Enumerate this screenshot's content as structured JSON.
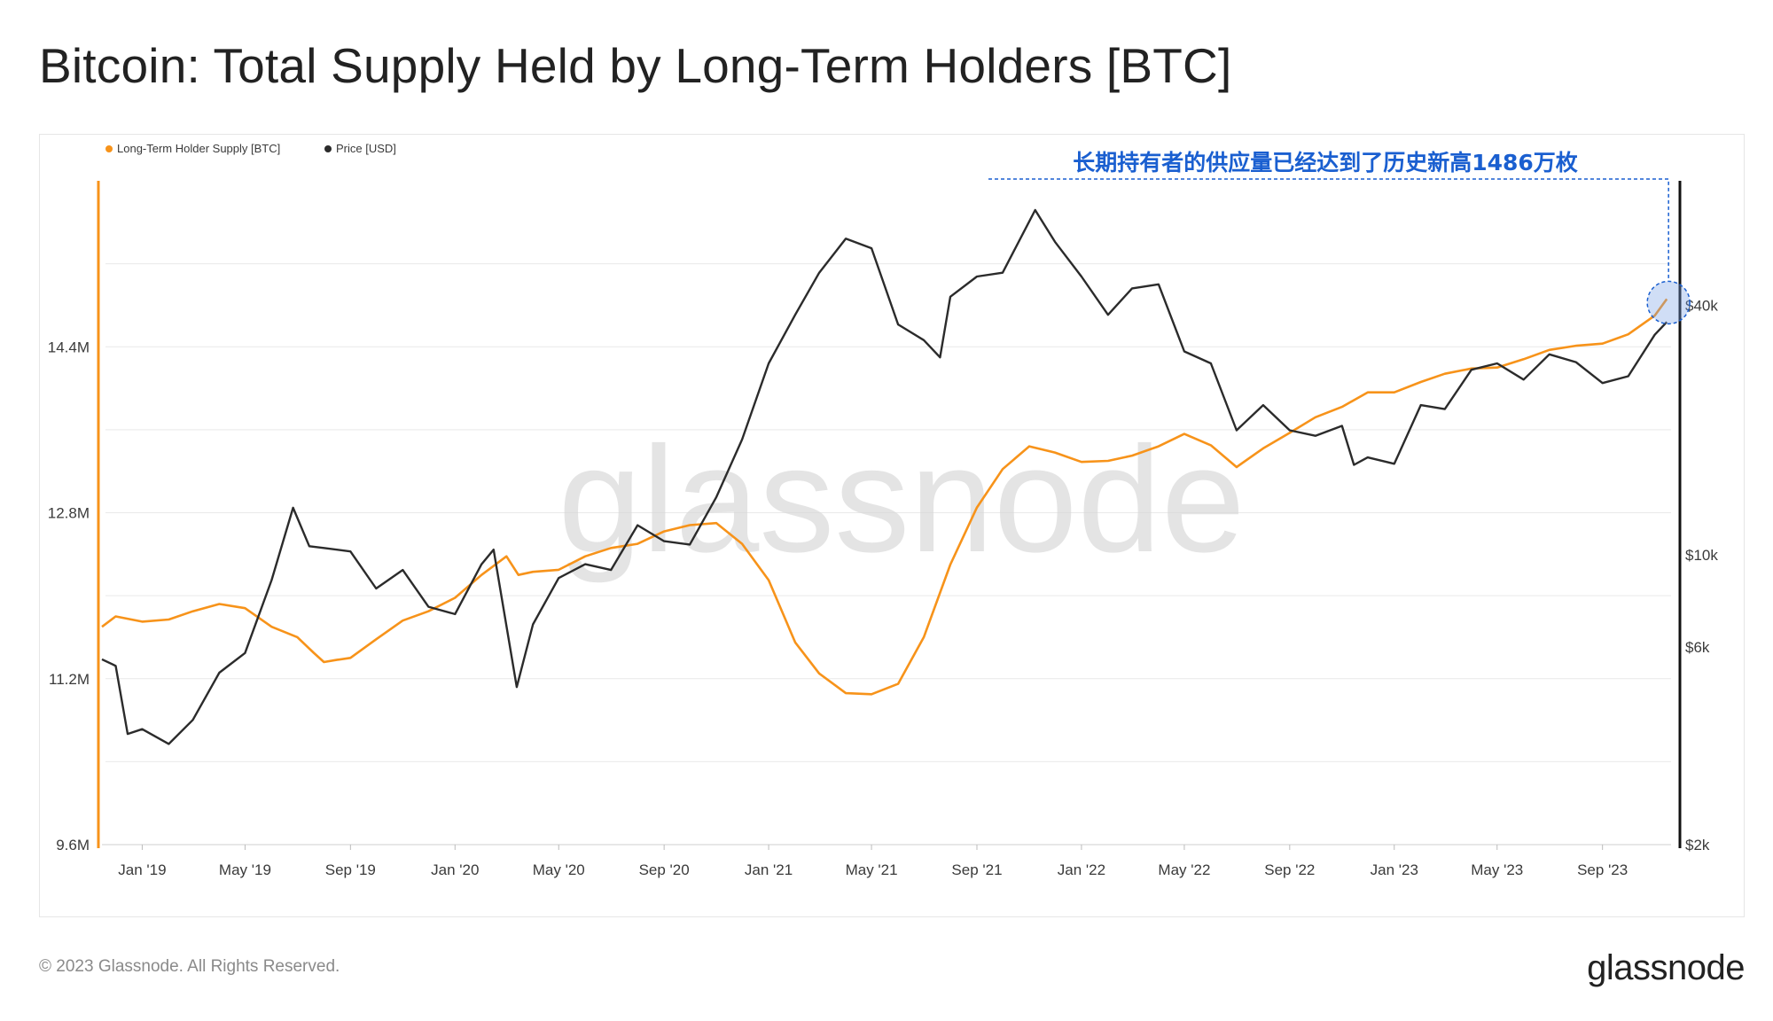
{
  "title": "Bitcoin: Total Supply Held by Long-Term Holders [BTC]",
  "footer": {
    "copyright": "© 2023 Glassnode. All Rights Reserved.",
    "logo": "glassnode"
  },
  "colors": {
    "lth": "#f7931a",
    "price": "#2b2b2b",
    "annotation": "#1a5fd0",
    "grid": "#e9e9e9"
  },
  "chart_data": {
    "type": "line",
    "title": "Bitcoin: Total Supply Held by Long-Term Holders [BTC]",
    "watermark": "glassnode",
    "legend": {
      "placement": "top-left",
      "entries": [
        "Long-Term Holder Supply [BTC]",
        "Price [USD]"
      ]
    },
    "annotation": {
      "text": "长期持有者的供应量已经达到了历史新高1486万枚",
      "date": "2023-11-15",
      "value": 14860000
    },
    "x_axis": {
      "range": [
        "2018-11-15",
        "2023-11-20"
      ],
      "ticks": [
        "Jan '19",
        "May '19",
        "Sep '19",
        "Jan '20",
        "May '20",
        "Sep '20",
        "Jan '21",
        "May '21",
        "Sep '21",
        "Jan '22",
        "May '22",
        "Sep '22",
        "Jan '23",
        "May '23",
        "Sep '23"
      ],
      "tick_dates": [
        "2019-01-01",
        "2019-05-01",
        "2019-09-01",
        "2020-01-01",
        "2020-05-01",
        "2020-09-01",
        "2021-01-01",
        "2021-05-01",
        "2021-09-01",
        "2022-01-01",
        "2022-05-01",
        "2022-09-01",
        "2023-01-01",
        "2023-05-01",
        "2023-09-01"
      ]
    },
    "y_left": {
      "label": "",
      "range": [
        9600000,
        16000000
      ],
      "ticks": [
        "9.6M",
        "11.2M",
        "12.8M",
        "14.4M"
      ],
      "tick_values": [
        9600000,
        11200000,
        12800000,
        14400000
      ]
    },
    "y_right": {
      "label": "",
      "scale": "log",
      "range": [
        2000,
        80000
      ],
      "ticks": [
        "$2k",
        "$6k",
        "$10k",
        "$40k"
      ],
      "tick_values": [
        2000,
        6000,
        10000,
        40000
      ]
    },
    "grid": true,
    "series": [
      {
        "name": "Long-Term Holder Supply [BTC]",
        "axis": "left",
        "color": "#f7931a",
        "x": [
          "2018-11-15",
          "2018-12-01",
          "2019-01-01",
          "2019-02-01",
          "2019-03-01",
          "2019-04-01",
          "2019-05-01",
          "2019-06-01",
          "2019-07-01",
          "2019-07-20",
          "2019-08-01",
          "2019-08-15",
          "2019-09-01",
          "2019-10-01",
          "2019-11-01",
          "2019-12-01",
          "2020-01-01",
          "2020-02-01",
          "2020-03-01",
          "2020-03-15",
          "2020-04-01",
          "2020-05-01",
          "2020-06-01",
          "2020-07-01",
          "2020-08-01",
          "2020-09-01",
          "2020-10-01",
          "2020-11-01",
          "2020-12-01",
          "2021-01-01",
          "2021-02-01",
          "2021-03-01",
          "2021-04-01",
          "2021-05-01",
          "2021-06-01",
          "2021-07-01",
          "2021-08-01",
          "2021-09-01",
          "2021-10-01",
          "2021-11-01",
          "2021-12-01",
          "2022-01-01",
          "2022-02-01",
          "2022-03-01",
          "2022-04-01",
          "2022-05-01",
          "2022-06-01",
          "2022-07-01",
          "2022-08-01",
          "2022-09-01",
          "2022-10-01",
          "2022-11-01",
          "2022-12-01",
          "2023-01-01",
          "2023-02-01",
          "2023-03-01",
          "2023-04-01",
          "2023-05-01",
          "2023-06-01",
          "2023-07-01",
          "2023-08-01",
          "2023-09-01",
          "2023-10-01",
          "2023-11-01",
          "2023-11-15"
        ],
        "values": [
          11700000,
          11800000,
          11750000,
          11770000,
          11850000,
          11920000,
          11880000,
          11700000,
          11600000,
          11450000,
          11360000,
          11380000,
          11400000,
          11580000,
          11760000,
          11850000,
          11980000,
          12200000,
          12380000,
          12200000,
          12230000,
          12250000,
          12380000,
          12460000,
          12500000,
          12620000,
          12680000,
          12700000,
          12500000,
          12150000,
          11550000,
          11250000,
          11060000,
          11050000,
          11150000,
          11600000,
          12300000,
          12850000,
          13220000,
          13440000,
          13380000,
          13290000,
          13300000,
          13350000,
          13440000,
          13560000,
          13450000,
          13240000,
          13420000,
          13570000,
          13720000,
          13820000,
          13960000,
          13960000,
          14060000,
          14140000,
          14190000,
          14200000,
          14280000,
          14370000,
          14410000,
          14430000,
          14520000,
          14700000,
          14860000
        ]
      },
      {
        "name": "Price [USD]",
        "axis": "right",
        "color": "#2b2b2b",
        "x": [
          "2018-11-15",
          "2018-12-01",
          "2018-12-15",
          "2019-01-01",
          "2019-02-01",
          "2019-03-01",
          "2019-04-01",
          "2019-05-01",
          "2019-06-01",
          "2019-06-26",
          "2019-07-15",
          "2019-08-01",
          "2019-09-01",
          "2019-10-01",
          "2019-11-01",
          "2019-12-01",
          "2020-01-01",
          "2020-02-01",
          "2020-02-15",
          "2020-03-13",
          "2020-04-01",
          "2020-05-01",
          "2020-06-01",
          "2020-07-01",
          "2020-08-01",
          "2020-09-01",
          "2020-10-01",
          "2020-11-01",
          "2020-12-01",
          "2021-01-01",
          "2021-02-01",
          "2021-03-01",
          "2021-04-01",
          "2021-05-01",
          "2021-06-01",
          "2021-07-01",
          "2021-07-20",
          "2021-08-01",
          "2021-09-01",
          "2021-10-01",
          "2021-11-08",
          "2021-12-01",
          "2022-01-01",
          "2022-02-01",
          "2022-03-01",
          "2022-04-01",
          "2022-05-01",
          "2022-06-01",
          "2022-07-01",
          "2022-08-01",
          "2022-09-01",
          "2022-10-01",
          "2022-11-01",
          "2022-11-15",
          "2022-12-01",
          "2023-01-01",
          "2023-02-01",
          "2023-03-01",
          "2023-04-01",
          "2023-05-01",
          "2023-06-01",
          "2023-07-01",
          "2023-08-01",
          "2023-09-01",
          "2023-10-01",
          "2023-11-01",
          "2023-11-15"
        ],
        "values": [
          5600,
          5400,
          3700,
          3800,
          3500,
          4000,
          5200,
          5800,
          8700,
          13000,
          10500,
          10400,
          10200,
          8300,
          9200,
          7500,
          7200,
          9500,
          10300,
          4800,
          6800,
          8800,
          9500,
          9200,
          11800,
          10800,
          10600,
          13800,
          19000,
          29000,
          38000,
          48000,
          58000,
          55000,
          36000,
          33000,
          30000,
          42000,
          47000,
          48000,
          68000,
          57000,
          47000,
          38000,
          44000,
          45000,
          31000,
          29000,
          20000,
          23000,
          20000,
          19400,
          20500,
          16500,
          17200,
          16600,
          23000,
          22500,
          28000,
          29000,
          26500,
          30500,
          29200,
          26000,
          27000,
          34000,
          36500
        ]
      }
    ]
  }
}
